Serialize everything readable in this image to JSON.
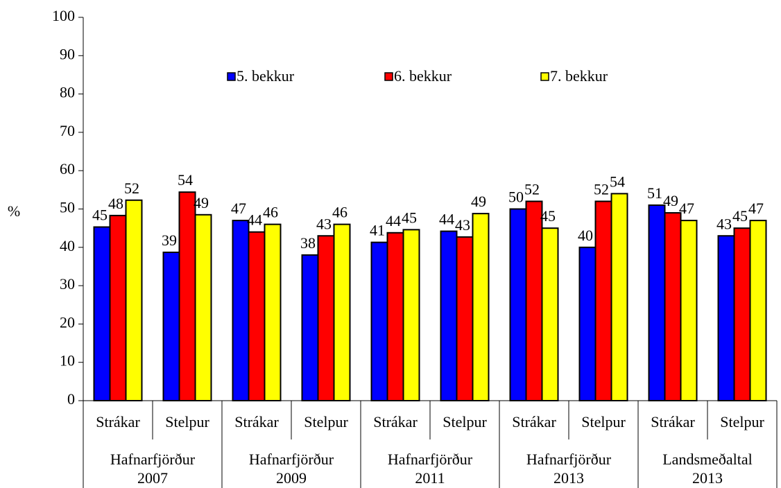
{
  "chart_data": {
    "type": "bar",
    "y_label": "%",
    "categories": [
      "Strákar",
      "Stelpur",
      "Strákar",
      "Stelpur",
      "Strákar",
      "Stelpur",
      "Strákar",
      "Stelpur",
      "Strákar",
      "Stelpur"
    ],
    "groups": [
      "Hafnarfjörður 2007",
      "Hafnarfjörður 2009",
      "Hafnarfjörður 2011",
      "Hafnarfjörður 2013",
      "Landsmeðaltal 2013"
    ],
    "series": [
      {
        "name": "5. bekkur",
        "color": "#0000ff",
        "values": [
          45.3,
          38.7,
          47,
          38,
          41.3,
          44.2,
          50,
          40,
          51,
          43
        ],
        "value_labels": [
          "45",
          "39",
          "47",
          "38",
          "41",
          "44",
          "50",
          "40",
          "51",
          "43"
        ]
      },
      {
        "name": "6. bekkur",
        "color": "#ff0000",
        "values": [
          48.3,
          54.4,
          44,
          43,
          43.8,
          42.7,
          52,
          52,
          49,
          45
        ],
        "value_labels": [
          "48",
          "54",
          "44",
          "43",
          "44",
          "43",
          "52",
          "52",
          "49",
          "45"
        ]
      },
      {
        "name": "7. bekkur",
        "color": "#ffff00",
        "values": [
          52.3,
          48.5,
          46,
          46,
          44.6,
          48.8,
          45,
          54,
          47,
          47
        ],
        "value_labels": [
          "52",
          "49",
          "46",
          "46",
          "45",
          "49",
          "45",
          "54",
          "47",
          "47"
        ]
      }
    ],
    "ylim": [
      0,
      100
    ],
    "yticks": [
      0,
      10,
      20,
      30,
      40,
      50,
      60,
      70,
      80,
      90,
      100
    ],
    "legend": "top"
  }
}
